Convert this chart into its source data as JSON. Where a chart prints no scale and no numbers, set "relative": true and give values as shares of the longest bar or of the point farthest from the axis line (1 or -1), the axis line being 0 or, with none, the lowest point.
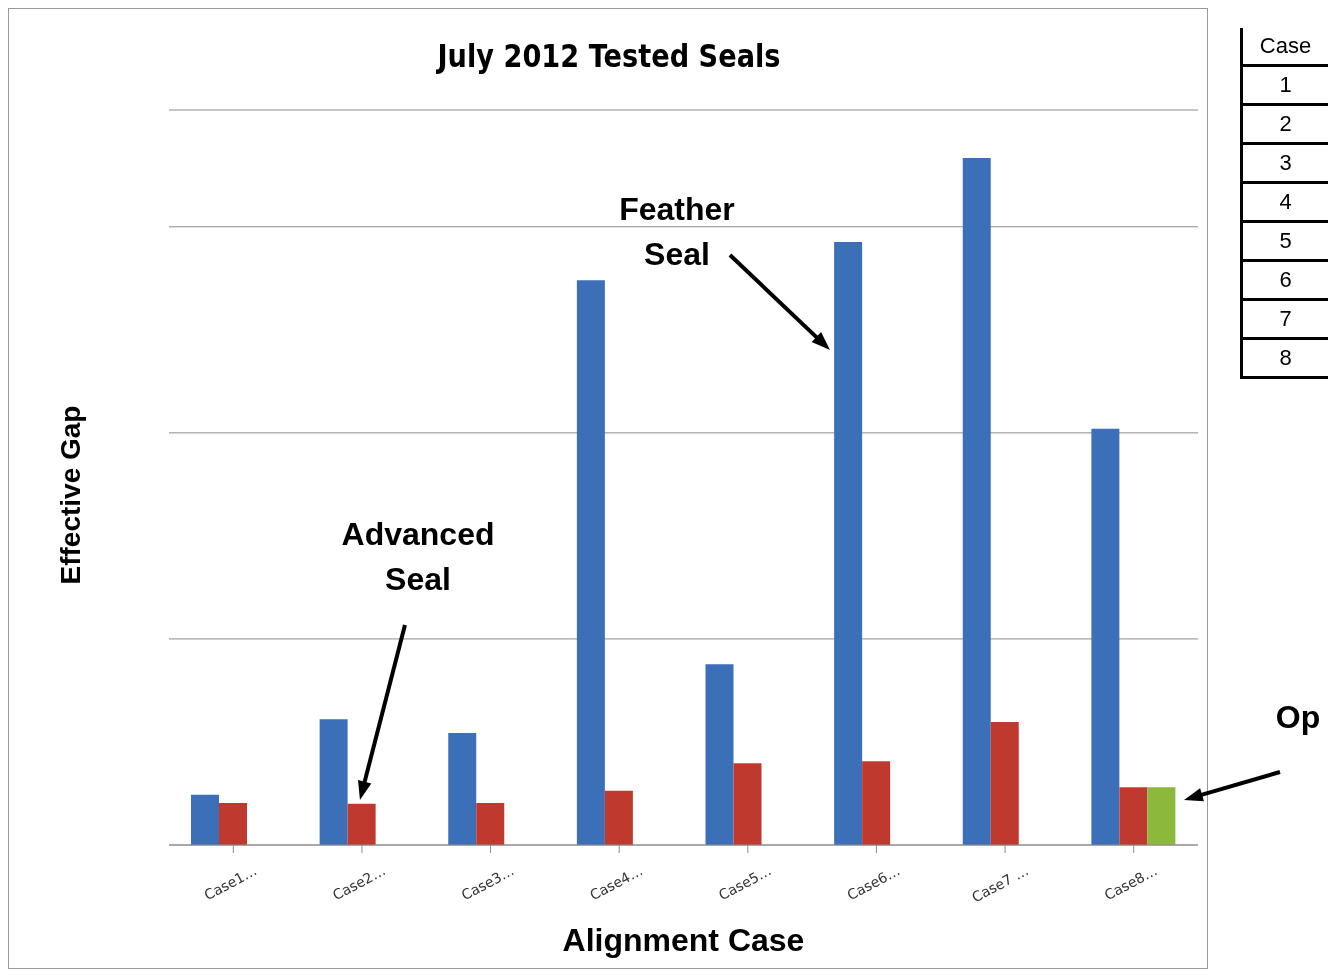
{
  "chart_data": [
    {
      "type": "bar",
      "title": "July 2012 Tested Seals",
      "xlabel": "Alignment Case",
      "ylabel": "Effective Gap",
      "relative": true,
      "grid": "y",
      "legend": false,
      "categories": [
        "Case1…",
        "Case2…",
        "Case3…",
        "Case4…",
        "Case5…",
        "Case6…",
        "Case7 …",
        "Case8…"
      ],
      "series": [
        {
          "color": "#3b70b9",
          "values": [
            0.073,
            0.183,
            0.163,
            0.822,
            0.263,
            0.878,
            1,
            0.606
          ]
        },
        {
          "color": "#c0392f",
          "values": [
            0.061,
            0.06,
            0.061,
            0.079,
            0.119,
            0.122,
            0.179,
            0.084
          ]
        },
        {
          "color": "#8cb83c",
          "values": [
            null,
            null,
            null,
            null,
            null,
            null,
            null,
            0.084
          ]
        }
      ],
      "annotations": [
        "Feather Seal",
        "Advanced Seal",
        "Op",
        "Case",
        "1",
        "2",
        "3",
        "4",
        "5",
        "6",
        "7",
        "8"
      ]
    }
  ]
}
